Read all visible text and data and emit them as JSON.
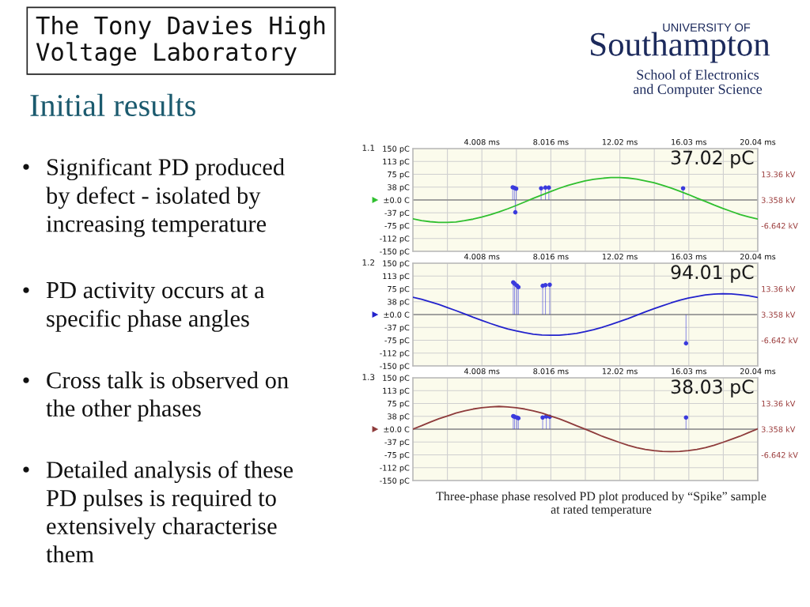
{
  "chart_data": [
    {
      "type": "other",
      "title": "Initial results",
      "annotations": [
        "The Tony Davies High\nVoltage Laboratory",
        "UNIVERSITY OF",
        "Southampton",
        "School of Electronics\nand Computer Science",
        "•",
        "Significant PD produced\nby defect - isolated by\nincreasing temperature",
        "•",
        "PD activity occurs at a\nspecific phase angles",
        "•",
        "Cross talk is observed on\nthe other phases",
        "•",
        "Detailed analysis of these\nPD pulses is required to\nextensively characterise\nthem"
      ]
    },
    {
      "type": "line",
      "annotations": [
        "1.1",
        "37.02 pC"
      ],
      "xlim": [
        0,
        20.04
      ],
      "xticks": [
        {
          "value": 2.004,
          "label": null
        },
        {
          "value": 4.008,
          "label": "4.008 ms"
        },
        {
          "value": 6.012,
          "label": null
        },
        {
          "value": 8.016,
          "label": "8.016 ms"
        },
        {
          "value": 10.02,
          "label": null
        },
        {
          "value": 12.024,
          "label": "12.02 ms"
        },
        {
          "value": 14.028,
          "label": null
        },
        {
          "value": 16.032,
          "label": "16.03 ms"
        },
        {
          "value": 18.036,
          "label": null
        },
        {
          "value": 20.04,
          "label": "20.04 ms"
        }
      ],
      "ylim": [
        -150,
        150
      ],
      "yticks": [
        {
          "value": 150,
          "label": "150 pC"
        },
        {
          "value": 112.5,
          "label": "113 pC"
        },
        {
          "value": 75,
          "label": "75 pC"
        },
        {
          "value": 37.5,
          "label": "38 pC"
        },
        {
          "value": 0,
          "label": "±0.0 C"
        },
        {
          "value": -37.5,
          "label": "-37 pC"
        },
        {
          "value": -75,
          "label": "-75 pC"
        },
        {
          "value": -112.5,
          "label": "-112 pC"
        },
        {
          "value": -150,
          "label": "-150 pC"
        }
      ],
      "y2lim": [
        -16.642,
        23.358
      ],
      "y2ticks": [
        {
          "value": 13.358,
          "label": "13.36 kV"
        },
        {
          "value": 3.358,
          "label": "3.358 kV"
        },
        {
          "value": -6.642,
          "label": "-6.642 kV"
        }
      ],
      "grid": true,
      "ref_lines": [
        {
          "axis": "y",
          "value": 0,
          "color": "#8a8a8a"
        }
      ],
      "series": [
        {
          "type": "line",
          "axis": "y2",
          "color": "#2fbf2f",
          "x": [
            0,
            0.5,
            1,
            1.5,
            2,
            2.5,
            3,
            3.5,
            4,
            4.5,
            5,
            5.5,
            6,
            6.5,
            7,
            7.5,
            8,
            8.5,
            9,
            9.5,
            10,
            10.5,
            11,
            11.5,
            12,
            12.5,
            13,
            13.5,
            14,
            14.5,
            15,
            15.5,
            16,
            16.5,
            17,
            17.5,
            18,
            18.5,
            19,
            19.5,
            20.04
          ],
          "values": [
            -4.0,
            -4.7,
            -5.1,
            -5.4,
            -5.4,
            -5.2,
            -4.7,
            -4.1,
            -3.3,
            -2.4,
            -1.3,
            -0.1,
            1.2,
            2.6,
            4.0,
            5.3,
            6.6,
            7.9,
            9.0,
            9.9,
            10.8,
            11.4,
            11.8,
            12.1,
            12.1,
            11.9,
            11.5,
            10.8,
            10.1,
            9.1,
            8.0,
            6.8,
            5.5,
            4.1,
            2.8,
            1.4,
            0.1,
            -1.1,
            -2.3,
            -3.2,
            -4.1
          ]
        },
        {
          "type": "lollipop",
          "color": "#3b3bdd",
          "marker": "circle",
          "x": [
            5.8,
            5.9,
            5.95,
            6.0,
            7.45,
            7.7,
            7.9,
            15.7
          ],
          "values": [
            37,
            35,
            -36,
            33,
            34,
            36,
            36,
            34
          ]
        }
      ]
    },
    {
      "type": "line",
      "annotations": [
        "1.2",
        "94.01 pC"
      ],
      "xlim": [
        0,
        20.04
      ],
      "xticks": [
        {
          "value": 2.004,
          "label": null
        },
        {
          "value": 4.008,
          "label": "4.008 ms"
        },
        {
          "value": 6.012,
          "label": null
        },
        {
          "value": 8.016,
          "label": "8.016 ms"
        },
        {
          "value": 10.02,
          "label": null
        },
        {
          "value": 12.024,
          "label": "12.02 ms"
        },
        {
          "value": 14.028,
          "label": null
        },
        {
          "value": 16.032,
          "label": "16.03 ms"
        },
        {
          "value": 18.036,
          "label": null
        },
        {
          "value": 20.04,
          "label": "20.04 ms"
        }
      ],
      "ylim": [
        -150,
        150
      ],
      "yticks": [
        {
          "value": 150,
          "label": "150 pC"
        },
        {
          "value": 112.5,
          "label": "113 pC"
        },
        {
          "value": 75,
          "label": "75 pC"
        },
        {
          "value": 37.5,
          "label": "38 pC"
        },
        {
          "value": 0,
          "label": "±0.0 C"
        },
        {
          "value": -37.5,
          "label": "-37 pC"
        },
        {
          "value": -75,
          "label": "-75 pC"
        },
        {
          "value": -112.5,
          "label": "-112 pC"
        },
        {
          "value": -150,
          "label": "-150 pC"
        }
      ],
      "y2lim": [
        -16.642,
        23.358
      ],
      "y2ticks": [
        {
          "value": 13.358,
          "label": "13.36 kV"
        },
        {
          "value": 3.358,
          "label": "3.358 kV"
        },
        {
          "value": -6.642,
          "label": "-6.642 kV"
        }
      ],
      "grid": true,
      "ref_lines": [
        {
          "axis": "y",
          "value": 0,
          "color": "#8a8a8a"
        }
      ],
      "series": [
        {
          "type": "line",
          "axis": "y2",
          "color": "#2222cc",
          "x": [
            0,
            0.5,
            1,
            1.5,
            2,
            2.5,
            3,
            3.5,
            4,
            4.5,
            5,
            5.5,
            6,
            6.5,
            7,
            7.5,
            8,
            8.5,
            9,
            9.5,
            10,
            10.5,
            11,
            11.5,
            12,
            12.5,
            13,
            13.5,
            14,
            14.5,
            15,
            15.5,
            16,
            16.5,
            17,
            17.5,
            18,
            18.5,
            19,
            19.5,
            20.04
          ],
          "values": [
            10.1,
            9.3,
            8.3,
            7.3,
            6.1,
            4.9,
            3.6,
            2.3,
            1.1,
            -0.1,
            -1.2,
            -2.2,
            -3.0,
            -3.7,
            -4.3,
            -4.6,
            -4.7,
            -4.7,
            -4.4,
            -4.0,
            -3.3,
            -2.5,
            -1.6,
            -0.5,
            0.6,
            1.8,
            3.1,
            4.4,
            5.6,
            6.8,
            7.9,
            8.9,
            9.8,
            10.4,
            11.0,
            11.3,
            11.5,
            11.4,
            11.1,
            10.7,
            10.0
          ]
        },
        {
          "type": "lollipop",
          "color": "#3b3bdd",
          "marker": "circle",
          "x": [
            5.83,
            5.91,
            6.04,
            6.13,
            7.54,
            7.7,
            7.95,
            15.87
          ],
          "values": [
            94,
            90,
            85,
            80,
            84,
            86,
            87,
            -84
          ]
        }
      ]
    },
    {
      "type": "line",
      "annotations": [
        "1.3",
        "38.03 pC",
        "Three-phase phase resolved PD plot produced by “Spike” sample\nat rated temperature"
      ],
      "xlim": [
        0,
        20.04
      ],
      "xticks": [
        {
          "value": 2.004,
          "label": null
        },
        {
          "value": 4.008,
          "label": "4.008 ms"
        },
        {
          "value": 6.012,
          "label": null
        },
        {
          "value": 8.016,
          "label": "8.016 ms"
        },
        {
          "value": 10.02,
          "label": null
        },
        {
          "value": 12.024,
          "label": "12.02 ms"
        },
        {
          "value": 14.028,
          "label": null
        },
        {
          "value": 16.032,
          "label": "16.03 ms"
        },
        {
          "value": 18.036,
          "label": null
        },
        {
          "value": 20.04,
          "label": "20.04 ms"
        }
      ],
      "ylim": [
        -150,
        150
      ],
      "yticks": [
        {
          "value": 150,
          "label": "150 pC"
        },
        {
          "value": 112.5,
          "label": "113 pC"
        },
        {
          "value": 75,
          "label": "75 pC"
        },
        {
          "value": 37.5,
          "label": "38 pC"
        },
        {
          "value": 0,
          "label": "±0.0 C"
        },
        {
          "value": -37.5,
          "label": "-37 pC"
        },
        {
          "value": -75,
          "label": "-75 pC"
        },
        {
          "value": -112.5,
          "label": "-112 pC"
        },
        {
          "value": -150,
          "label": "-150 pC"
        }
      ],
      "y2lim": [
        -16.642,
        23.358
      ],
      "y2ticks": [
        {
          "value": 13.358,
          "label": "13.36 kV"
        },
        {
          "value": 3.358,
          "label": "3.358 kV"
        },
        {
          "value": -6.642,
          "label": "-6.642 kV"
        }
      ],
      "grid": true,
      "ref_lines": [
        {
          "axis": "y",
          "value": 0,
          "color": "#8a8a8a"
        }
      ],
      "series": [
        {
          "type": "line",
          "axis": "y2",
          "color": "#8e3b3b",
          "x": [
            0,
            0.5,
            1,
            1.5,
            2,
            2.5,
            3,
            3.5,
            4,
            4.5,
            5,
            5.5,
            6,
            6.5,
            7,
            7.5,
            8,
            8.5,
            9,
            9.5,
            10,
            10.5,
            11,
            11.5,
            12,
            12.5,
            13,
            13.5,
            14,
            14.5,
            15,
            15.5,
            16,
            16.5,
            17,
            17.5,
            18,
            18.5,
            19,
            19.5,
            20.04
          ],
          "values": [
            3.4,
            4.7,
            6.1,
            7.4,
            8.5,
            9.6,
            10.5,
            11.2,
            11.7,
            12.0,
            12.2,
            12.0,
            11.7,
            11.2,
            10.5,
            9.6,
            8.5,
            7.4,
            6.1,
            4.7,
            3.4,
            2.0,
            0.6,
            -0.6,
            -1.8,
            -2.9,
            -3.8,
            -4.5,
            -5.0,
            -5.3,
            -5.4,
            -5.3,
            -5.0,
            -4.5,
            -3.8,
            -2.9,
            -1.8,
            -0.6,
            0.6,
            2.0,
            3.5
          ]
        },
        {
          "type": "lollipop",
          "color": "#3b3bdd",
          "marker": "circle",
          "x": [
            5.83,
            5.91,
            6.04,
            6.13,
            7.54,
            7.75,
            7.95,
            15.87
          ],
          "values": [
            38,
            36,
            34,
            32,
            34,
            37,
            36,
            34
          ]
        }
      ]
    }
  ]
}
